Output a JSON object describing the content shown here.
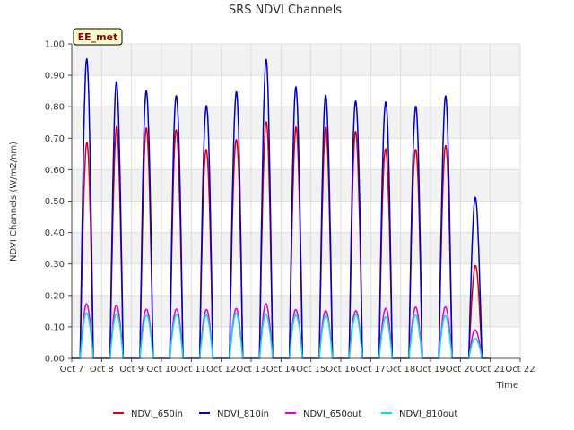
{
  "chart_data": {
    "type": "line",
    "title": "SRS NDVI Channels",
    "xlabel": "Time",
    "ylabel": "NDVI Channels (W/m2/nm)",
    "badge": "EE_met",
    "xlim": [
      0,
      15
    ],
    "ylim": [
      0,
      1.0
    ],
    "x_tick_labels": [
      "Oct 7",
      "Oct 8",
      "Oct 9",
      "Oct 10",
      "Oct 11",
      "Oct 12",
      "Oct 13",
      "Oct 14",
      "Oct 15",
      "Oct 16",
      "Oct 17",
      "Oct 18",
      "Oct 19",
      "Oct 20",
      "Oct 21",
      "Oct 22"
    ],
    "y_tick_labels": [
      "0.00",
      "0.10",
      "0.20",
      "0.30",
      "0.40",
      "0.50",
      "0.60",
      "0.70",
      "0.80",
      "0.90",
      "1.00"
    ],
    "x_units": "days since Oct 7 00:00",
    "daylight_hours": {
      "start": 0.28,
      "end": 0.72
    },
    "grid": true,
    "background_bands": true,
    "legend_position": "bottom-center",
    "series": [
      {
        "name": "NDVI_650in",
        "color": "#dd0000",
        "daily_peaks": [
          0.68,
          0.72,
          0.72,
          0.73,
          0.68,
          0.71,
          0.75,
          0.72,
          0.72,
          0.72,
          0.68,
          0.68,
          0.68,
          0.29
        ]
      },
      {
        "name": "NDVI_810in",
        "color": "#0000cc",
        "daily_peaks": [
          0.93,
          0.865,
          0.855,
          0.855,
          0.82,
          0.845,
          0.93,
          0.845,
          0.835,
          0.835,
          0.835,
          0.805,
          0.82,
          0.5
        ]
      },
      {
        "name": "NDVI_650out",
        "color": "#dd00dd",
        "daily_peaks": [
          0.17,
          0.17,
          0.16,
          0.16,
          0.155,
          0.155,
          0.17,
          0.155,
          0.155,
          0.155,
          0.16,
          0.16,
          0.16,
          0.09
        ]
      },
      {
        "name": "NDVI_810out",
        "color": "#00e0e0",
        "daily_peaks": [
          0.145,
          0.145,
          0.14,
          0.14,
          0.135,
          0.14,
          0.14,
          0.14,
          0.14,
          0.14,
          0.13,
          0.135,
          0.135,
          0.065
        ]
      }
    ]
  }
}
